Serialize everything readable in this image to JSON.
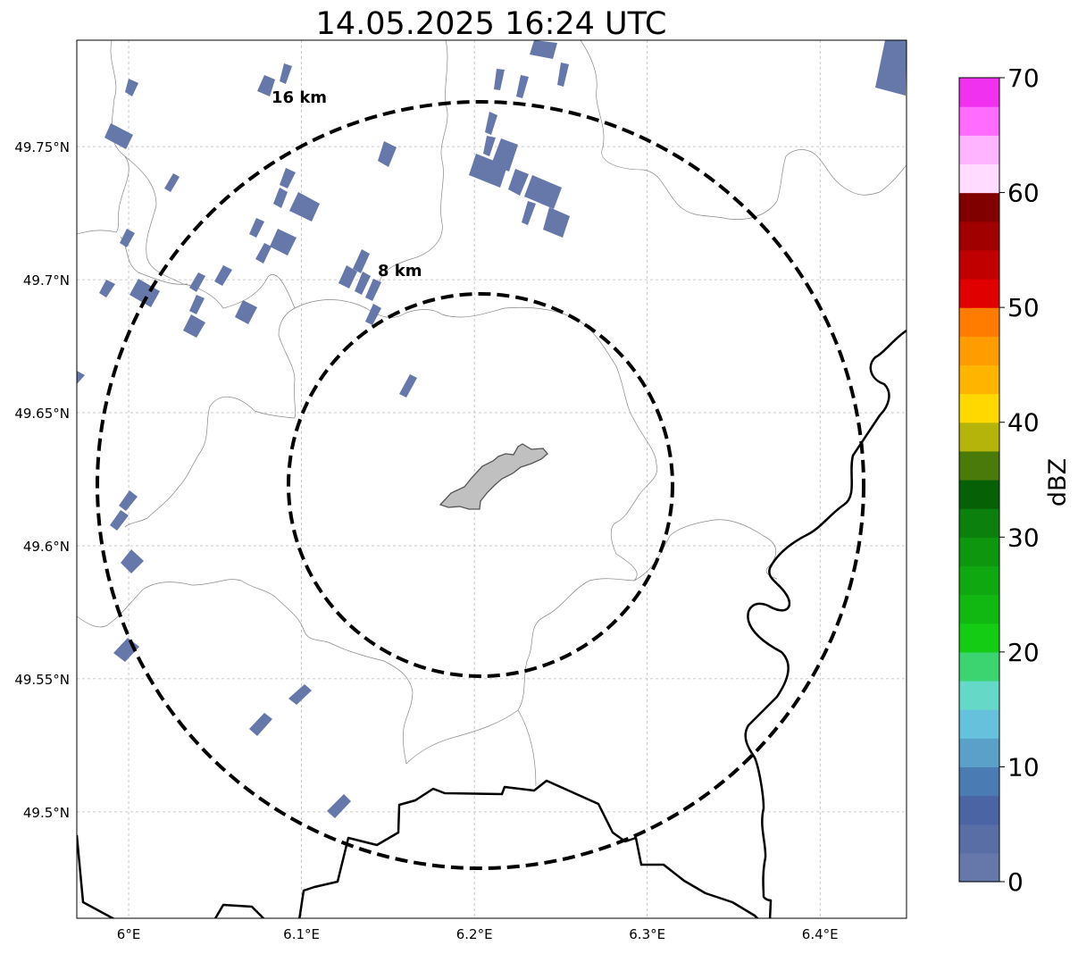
{
  "title": "14.05.2025 16:24 UTC",
  "map": {
    "lon_range": [
      5.97,
      6.45
    ],
    "lat_range": [
      49.46,
      49.79
    ],
    "lon_ticks": [
      {
        "value": 6.0,
        "label": "6°E"
      },
      {
        "value": 6.1,
        "label": "6.1°E"
      },
      {
        "value": 6.2,
        "label": "6.2°E"
      },
      {
        "value": 6.3,
        "label": "6.3°E"
      },
      {
        "value": 6.4,
        "label": "6.4°E"
      }
    ],
    "lat_ticks": [
      {
        "value": 49.5,
        "label": "49.5°N"
      },
      {
        "value": 49.55,
        "label": "49.55°N"
      },
      {
        "value": 49.6,
        "label": "49.6°N"
      },
      {
        "value": 49.65,
        "label": "49.65°N"
      },
      {
        "value": 49.7,
        "label": "49.7°N"
      },
      {
        "value": 49.75,
        "label": "49.75°N"
      }
    ],
    "gridlines": true,
    "range_rings": [
      {
        "label": "16 km",
        "radius_km": 16
      },
      {
        "label": "8 km",
        "radius_km": 8
      }
    ],
    "city_fill": "#c0c0c0",
    "echo_color": "#6677aa"
  },
  "colorbar": {
    "label": "dBZ",
    "min": 0,
    "max": 70,
    "ticks": [
      "0",
      "10",
      "20",
      "30",
      "40",
      "50",
      "60",
      "70"
    ],
    "colors": [
      "#6677aa",
      "#5a6ea6",
      "#4a64a4",
      "#4a7bb2",
      "#5aa0c8",
      "#66c2dc",
      "#66d8c8",
      "#3cd470",
      "#14cc14",
      "#12b812",
      "#10a810",
      "#0e960e",
      "#0c800c",
      "#066006",
      "#4a7a0a",
      "#b4b40a",
      "#ffd800",
      "#ffb400",
      "#ff9c00",
      "#ff7c00",
      "#e00000",
      "#c00000",
      "#a00000",
      "#800000",
      "#ffdcff",
      "#ffb4ff",
      "#ff6cff",
      "#f032f0"
    ]
  }
}
